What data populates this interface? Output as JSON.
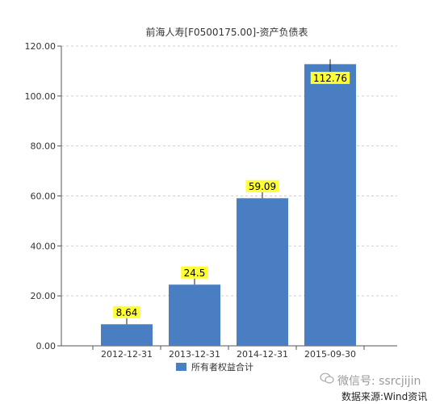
{
  "chart_data": {
    "type": "bar",
    "title": "前海人寿[F0500175.00]-资产负债表",
    "categories": [
      "2012-12-31",
      "2013-12-31",
      "2014-12-31",
      "2015-09-30"
    ],
    "series": [
      {
        "name": "所有者权益合计",
        "values": [
          8.64,
          24.5,
          59.09,
          112.76
        ],
        "color": "#4a7ec2"
      }
    ],
    "data_labels": [
      "8.64",
      "24.5",
      "59.09",
      "112.76"
    ],
    "ylim": [
      0,
      120
    ],
    "yticks": [
      "0.00",
      "20.00",
      "40.00",
      "60.00",
      "80.00",
      "100.00",
      "120.00"
    ],
    "grid": true,
    "legend": "bottom-center"
  },
  "watermark": {
    "text": "微信号: ssrcjijin",
    "icon": "wechat-icon"
  },
  "source": "数据来源:Wind资讯",
  "colors": {
    "bar": "#4a7ec2",
    "label_bg": "#ffff33",
    "grid": "#cfcfcf",
    "axis": "#555555"
  }
}
